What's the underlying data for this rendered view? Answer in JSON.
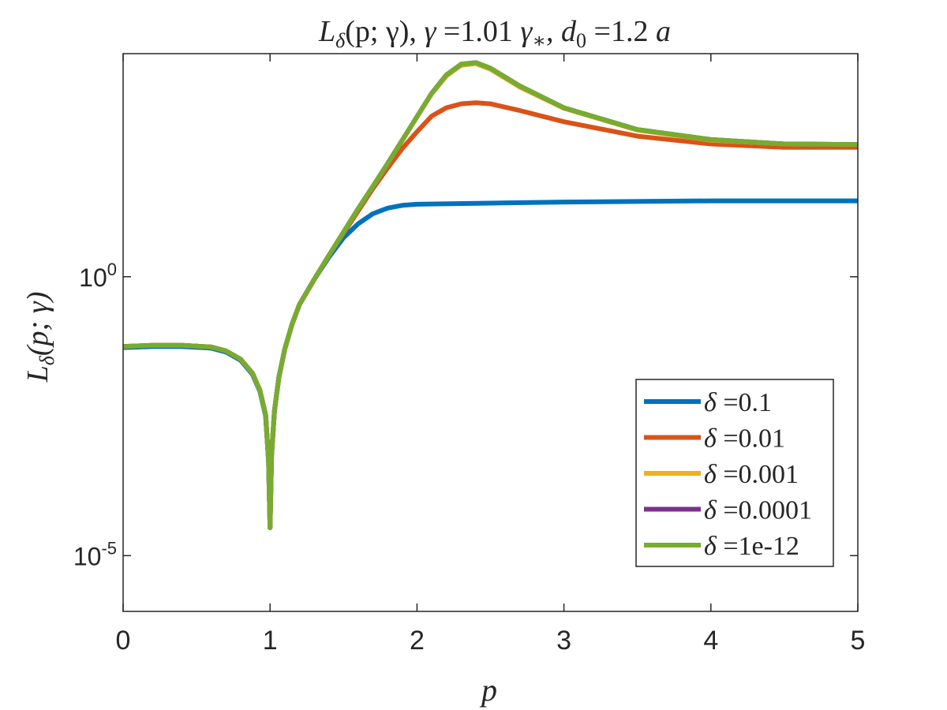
{
  "chart_data": {
    "type": "line",
    "title": "L_δ(p; γ), γ = 1.01 γ_*, d_0 = 1.2 a",
    "title_parts": {
      "L": "L",
      "delta": "δ",
      "args": "(p; γ), ",
      "gamma": "γ",
      "eq1": " =1.01 ",
      "gamma_star": "γ",
      "star": "∗",
      "comma": ", ",
      "d": "d",
      "zero": "0",
      "eq2": " =1.2 ",
      "a": "a"
    },
    "xlabel": "p",
    "ylabel": "L_δ(p; γ)",
    "ylabel_parts": {
      "L": "L",
      "delta": "δ",
      "args": "(p; γ)"
    },
    "xlim": [
      0,
      5
    ],
    "ylim_log10": [
      -6,
      4
    ],
    "yscale": "log",
    "grid": false,
    "xticks": [
      "0",
      "1",
      "2",
      "3",
      "4",
      "5"
    ],
    "yticks": [
      {
        "base": "10",
        "exp": "0",
        "log10": 0
      },
      {
        "base": "10",
        "exp": "-5",
        "log10": -5
      }
    ],
    "legend_position": "lower-right",
    "series": [
      {
        "name": "δ =0.1",
        "label_sym": "δ",
        "label_val": " =0.1",
        "color": "#0072BD",
        "points_log10": [
          [
            0,
            -1.27
          ],
          [
            0.2,
            -1.25
          ],
          [
            0.4,
            -1.25
          ],
          [
            0.6,
            -1.28
          ],
          [
            0.7,
            -1.35
          ],
          [
            0.8,
            -1.5
          ],
          [
            0.88,
            -1.75
          ],
          [
            0.93,
            -2.05
          ],
          [
            0.97,
            -2.5
          ],
          [
            0.99,
            -3.3
          ],
          [
            1.0,
            -4.5
          ],
          [
            1.01,
            -3.2
          ],
          [
            1.03,
            -2.4
          ],
          [
            1.06,
            -1.8
          ],
          [
            1.1,
            -1.3
          ],
          [
            1.15,
            -0.85
          ],
          [
            1.2,
            -0.5
          ],
          [
            1.3,
            -0.05
          ],
          [
            1.4,
            0.35
          ],
          [
            1.5,
            0.7
          ],
          [
            1.6,
            0.95
          ],
          [
            1.7,
            1.13
          ],
          [
            1.8,
            1.23
          ],
          [
            1.9,
            1.28
          ],
          [
            2.0,
            1.3
          ],
          [
            2.5,
            1.32
          ],
          [
            3.0,
            1.34
          ],
          [
            4.0,
            1.36
          ],
          [
            5.0,
            1.36
          ]
        ]
      },
      {
        "name": "δ =0.01",
        "label_sym": "δ",
        "label_val": " =0.01",
        "color": "#D95319",
        "points_log10": [
          [
            0,
            -1.25
          ],
          [
            0.2,
            -1.23
          ],
          [
            0.4,
            -1.23
          ],
          [
            0.6,
            -1.26
          ],
          [
            0.7,
            -1.33
          ],
          [
            0.8,
            -1.48
          ],
          [
            0.88,
            -1.73
          ],
          [
            0.93,
            -2.03
          ],
          [
            0.97,
            -2.48
          ],
          [
            0.99,
            -3.3
          ],
          [
            1.0,
            -4.5
          ],
          [
            1.01,
            -3.2
          ],
          [
            1.03,
            -2.4
          ],
          [
            1.06,
            -1.8
          ],
          [
            1.1,
            -1.3
          ],
          [
            1.15,
            -0.85
          ],
          [
            1.2,
            -0.5
          ],
          [
            1.3,
            -0.05
          ],
          [
            1.4,
            0.38
          ],
          [
            1.5,
            0.78
          ],
          [
            1.6,
            1.18
          ],
          [
            1.7,
            1.58
          ],
          [
            1.8,
            1.95
          ],
          [
            1.9,
            2.3
          ],
          [
            2.0,
            2.6
          ],
          [
            2.1,
            2.88
          ],
          [
            2.2,
            3.03
          ],
          [
            2.3,
            3.1
          ],
          [
            2.4,
            3.12
          ],
          [
            2.5,
            3.1
          ],
          [
            2.7,
            2.98
          ],
          [
            3.0,
            2.78
          ],
          [
            3.5,
            2.52
          ],
          [
            4.0,
            2.38
          ],
          [
            4.5,
            2.32
          ],
          [
            5.0,
            2.32
          ]
        ]
      },
      {
        "name": "δ =0.001",
        "label_sym": "δ",
        "label_val": " =0.001",
        "color": "#EDB120",
        "points_log10": [
          [
            0,
            -1.25
          ],
          [
            0.2,
            -1.23
          ],
          [
            0.4,
            -1.23
          ],
          [
            0.6,
            -1.26
          ],
          [
            0.7,
            -1.33
          ],
          [
            0.8,
            -1.48
          ],
          [
            0.88,
            -1.73
          ],
          [
            0.93,
            -2.03
          ],
          [
            0.97,
            -2.48
          ],
          [
            0.99,
            -3.3
          ],
          [
            1.0,
            -4.5
          ],
          [
            1.01,
            -3.2
          ],
          [
            1.03,
            -2.4
          ],
          [
            1.06,
            -1.8
          ],
          [
            1.1,
            -1.3
          ],
          [
            1.15,
            -0.85
          ],
          [
            1.2,
            -0.5
          ],
          [
            1.3,
            -0.05
          ],
          [
            1.4,
            0.38
          ],
          [
            1.5,
            0.8
          ],
          [
            1.6,
            1.22
          ],
          [
            1.7,
            1.62
          ],
          [
            1.8,
            2.03
          ],
          [
            1.9,
            2.45
          ],
          [
            2.0,
            2.87
          ],
          [
            2.1,
            3.28
          ],
          [
            2.2,
            3.6
          ],
          [
            2.3,
            3.79
          ],
          [
            2.4,
            3.82
          ],
          [
            2.5,
            3.72
          ],
          [
            2.7,
            3.4
          ],
          [
            3.0,
            3.02
          ],
          [
            3.5,
            2.63
          ],
          [
            4.0,
            2.45
          ],
          [
            4.5,
            2.38
          ],
          [
            5.0,
            2.37
          ]
        ]
      },
      {
        "name": "δ =0.0001",
        "label_sym": "δ",
        "label_val": " =0.0001",
        "color": "#7E2F8E",
        "points_log10": [
          [
            0,
            -1.25
          ],
          [
            0.2,
            -1.23
          ],
          [
            0.4,
            -1.23
          ],
          [
            0.6,
            -1.26
          ],
          [
            0.7,
            -1.33
          ],
          [
            0.8,
            -1.48
          ],
          [
            0.88,
            -1.73
          ],
          [
            0.93,
            -2.03
          ],
          [
            0.97,
            -2.48
          ],
          [
            0.99,
            -3.3
          ],
          [
            1.0,
            -4.5
          ],
          [
            1.01,
            -3.2
          ],
          [
            1.03,
            -2.4
          ],
          [
            1.06,
            -1.8
          ],
          [
            1.1,
            -1.3
          ],
          [
            1.15,
            -0.85
          ],
          [
            1.2,
            -0.5
          ],
          [
            1.3,
            -0.05
          ],
          [
            1.4,
            0.38
          ],
          [
            1.5,
            0.8
          ],
          [
            1.6,
            1.22
          ],
          [
            1.7,
            1.62
          ],
          [
            1.8,
            2.03
          ],
          [
            1.9,
            2.45
          ],
          [
            2.0,
            2.87
          ],
          [
            2.1,
            3.29
          ],
          [
            2.2,
            3.62
          ],
          [
            2.3,
            3.81
          ],
          [
            2.4,
            3.84
          ],
          [
            2.5,
            3.74
          ],
          [
            2.7,
            3.42
          ],
          [
            3.0,
            3.03
          ],
          [
            3.5,
            2.64
          ],
          [
            4.0,
            2.46
          ],
          [
            4.5,
            2.38
          ],
          [
            5.0,
            2.37
          ]
        ]
      },
      {
        "name": "δ =1e-12",
        "label_sym": "δ",
        "label_val": " =1e-12",
        "color": "#77AC30",
        "points_log10": [
          [
            0,
            -1.25
          ],
          [
            0.2,
            -1.23
          ],
          [
            0.4,
            -1.23
          ],
          [
            0.6,
            -1.26
          ],
          [
            0.7,
            -1.33
          ],
          [
            0.8,
            -1.48
          ],
          [
            0.88,
            -1.73
          ],
          [
            0.93,
            -2.03
          ],
          [
            0.97,
            -2.48
          ],
          [
            0.99,
            -3.3
          ],
          [
            1.0,
            -4.5
          ],
          [
            1.01,
            -3.2
          ],
          [
            1.03,
            -2.4
          ],
          [
            1.06,
            -1.8
          ],
          [
            1.1,
            -1.3
          ],
          [
            1.15,
            -0.85
          ],
          [
            1.2,
            -0.5
          ],
          [
            1.3,
            -0.05
          ],
          [
            1.4,
            0.38
          ],
          [
            1.5,
            0.8
          ],
          [
            1.6,
            1.22
          ],
          [
            1.7,
            1.62
          ],
          [
            1.8,
            2.03
          ],
          [
            1.9,
            2.45
          ],
          [
            2.0,
            2.87
          ],
          [
            2.1,
            3.29
          ],
          [
            2.2,
            3.62
          ],
          [
            2.3,
            3.81
          ],
          [
            2.4,
            3.84
          ],
          [
            2.5,
            3.74
          ],
          [
            2.7,
            3.42
          ],
          [
            3.0,
            3.03
          ],
          [
            3.5,
            2.64
          ],
          [
            4.0,
            2.46
          ],
          [
            4.5,
            2.38
          ],
          [
            5.0,
            2.37
          ]
        ]
      }
    ]
  }
}
